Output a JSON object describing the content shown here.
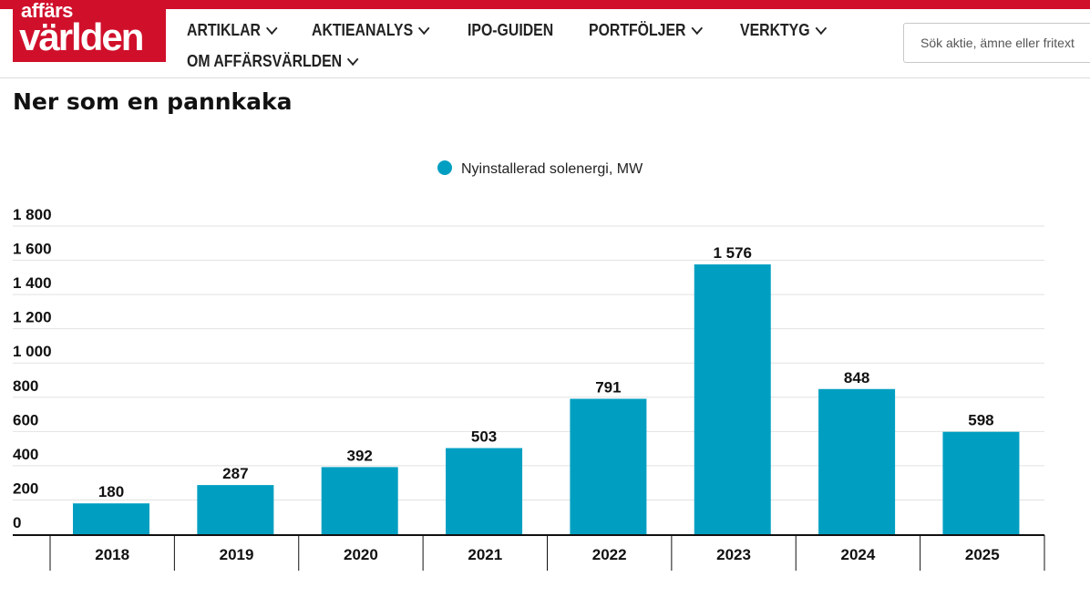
{
  "header": {
    "logo_line1": "affärs",
    "logo_line2": "världen",
    "nav": [
      {
        "label": "ARTIKLAR",
        "has_dropdown": true
      },
      {
        "label": "AKTIEANALYS",
        "has_dropdown": true
      },
      {
        "label": "IPO-GUIDEN",
        "has_dropdown": false
      },
      {
        "label": "PORTFÖLJER",
        "has_dropdown": true
      },
      {
        "label": "VERKTYG",
        "has_dropdown": true
      },
      {
        "label": "OM AFFÄRSVÄRLDEN",
        "has_dropdown": true
      }
    ],
    "search_placeholder": "Sök aktie, ämne eller fritext"
  },
  "colors": {
    "brand": "#d0102b",
    "bar": "#009fc2"
  },
  "page": {
    "title": "Ner som en pannkaka"
  },
  "chart_data": {
    "type": "bar",
    "title": "Ner som en pannkaka",
    "categories": [
      "2018",
      "2019",
      "2020",
      "2021",
      "2022",
      "2023",
      "2024",
      "2025"
    ],
    "series": [
      {
        "name": "Nyinstallerad solenergi, MW",
        "values": [
          180,
          287,
          392,
          503,
          791,
          1576,
          848,
          598
        ]
      }
    ],
    "value_labels": [
      "180",
      "287",
      "392",
      "503",
      "791",
      "1 576",
      "848",
      "598"
    ],
    "y_ticks": [
      0,
      200,
      400,
      600,
      800,
      1000,
      1200,
      1400,
      1600,
      1800
    ],
    "y_tick_labels": [
      "0",
      "200",
      "400",
      "600",
      "800",
      "1 000",
      "1 200",
      "1 400",
      "1 600",
      "1 800"
    ],
    "ylim": [
      0,
      1800
    ],
    "grid": true,
    "legend_position": "top-center",
    "xlabel": "",
    "ylabel": ""
  }
}
